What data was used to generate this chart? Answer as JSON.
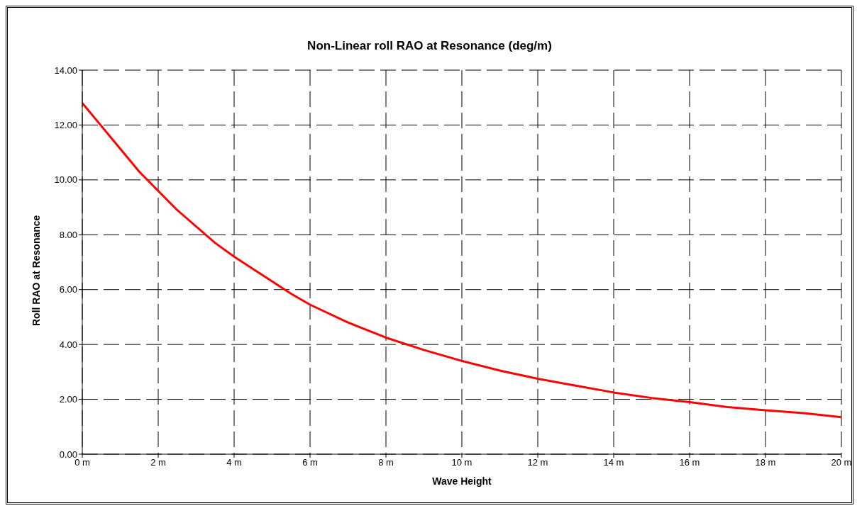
{
  "chart_data": {
    "type": "line",
    "title": "Non-Linear roll RAO at Resonance (deg/m)",
    "xlabel": "Wave Height",
    "ylabel": "Roll RAO at Resonance",
    "x": [
      0,
      1.5,
      2.5,
      3.5,
      4,
      5.5,
      6,
      7,
      8,
      9,
      10,
      11,
      12,
      13,
      14,
      15,
      16,
      17,
      18,
      19,
      20
    ],
    "series": [
      {
        "color": "#ff0000",
        "values": [
          12.8,
          10.3,
          8.9,
          7.7,
          7.2,
          5.85,
          5.45,
          4.8,
          4.25,
          3.8,
          3.4,
          3.05,
          2.75,
          2.5,
          2.25,
          2.05,
          1.9,
          1.72,
          1.6,
          1.5,
          1.35
        ]
      }
    ],
    "xlim": [
      0,
      20
    ],
    "xticks": [
      {
        "value": 0,
        "label": "0 m"
      },
      {
        "value": 2,
        "label": "2 m"
      },
      {
        "value": 4,
        "label": "4 m"
      },
      {
        "value": 6,
        "label": "6 m"
      },
      {
        "value": 8,
        "label": "8 m"
      },
      {
        "value": 10,
        "label": "10 m"
      },
      {
        "value": 12,
        "label": "12 m"
      },
      {
        "value": 14,
        "label": "14 m"
      },
      {
        "value": 16,
        "label": "16 m"
      },
      {
        "value": 18,
        "label": "18 m"
      },
      {
        "value": 20,
        "label": "20 m"
      }
    ],
    "ylim": [
      0,
      14
    ],
    "yticks": [
      {
        "value": 0,
        "label": "0.00"
      },
      {
        "value": 2,
        "label": "2.00"
      },
      {
        "value": 4,
        "label": "4.00"
      },
      {
        "value": 6,
        "label": "6.00"
      },
      {
        "value": 8,
        "label": "8.00"
      },
      {
        "value": 10,
        "label": "10.00"
      },
      {
        "value": 12,
        "label": "12.00"
      },
      {
        "value": 14,
        "label": "14.00"
      }
    ],
    "grid": true,
    "marker": "none",
    "line_style": "solid",
    "legend": false
  }
}
